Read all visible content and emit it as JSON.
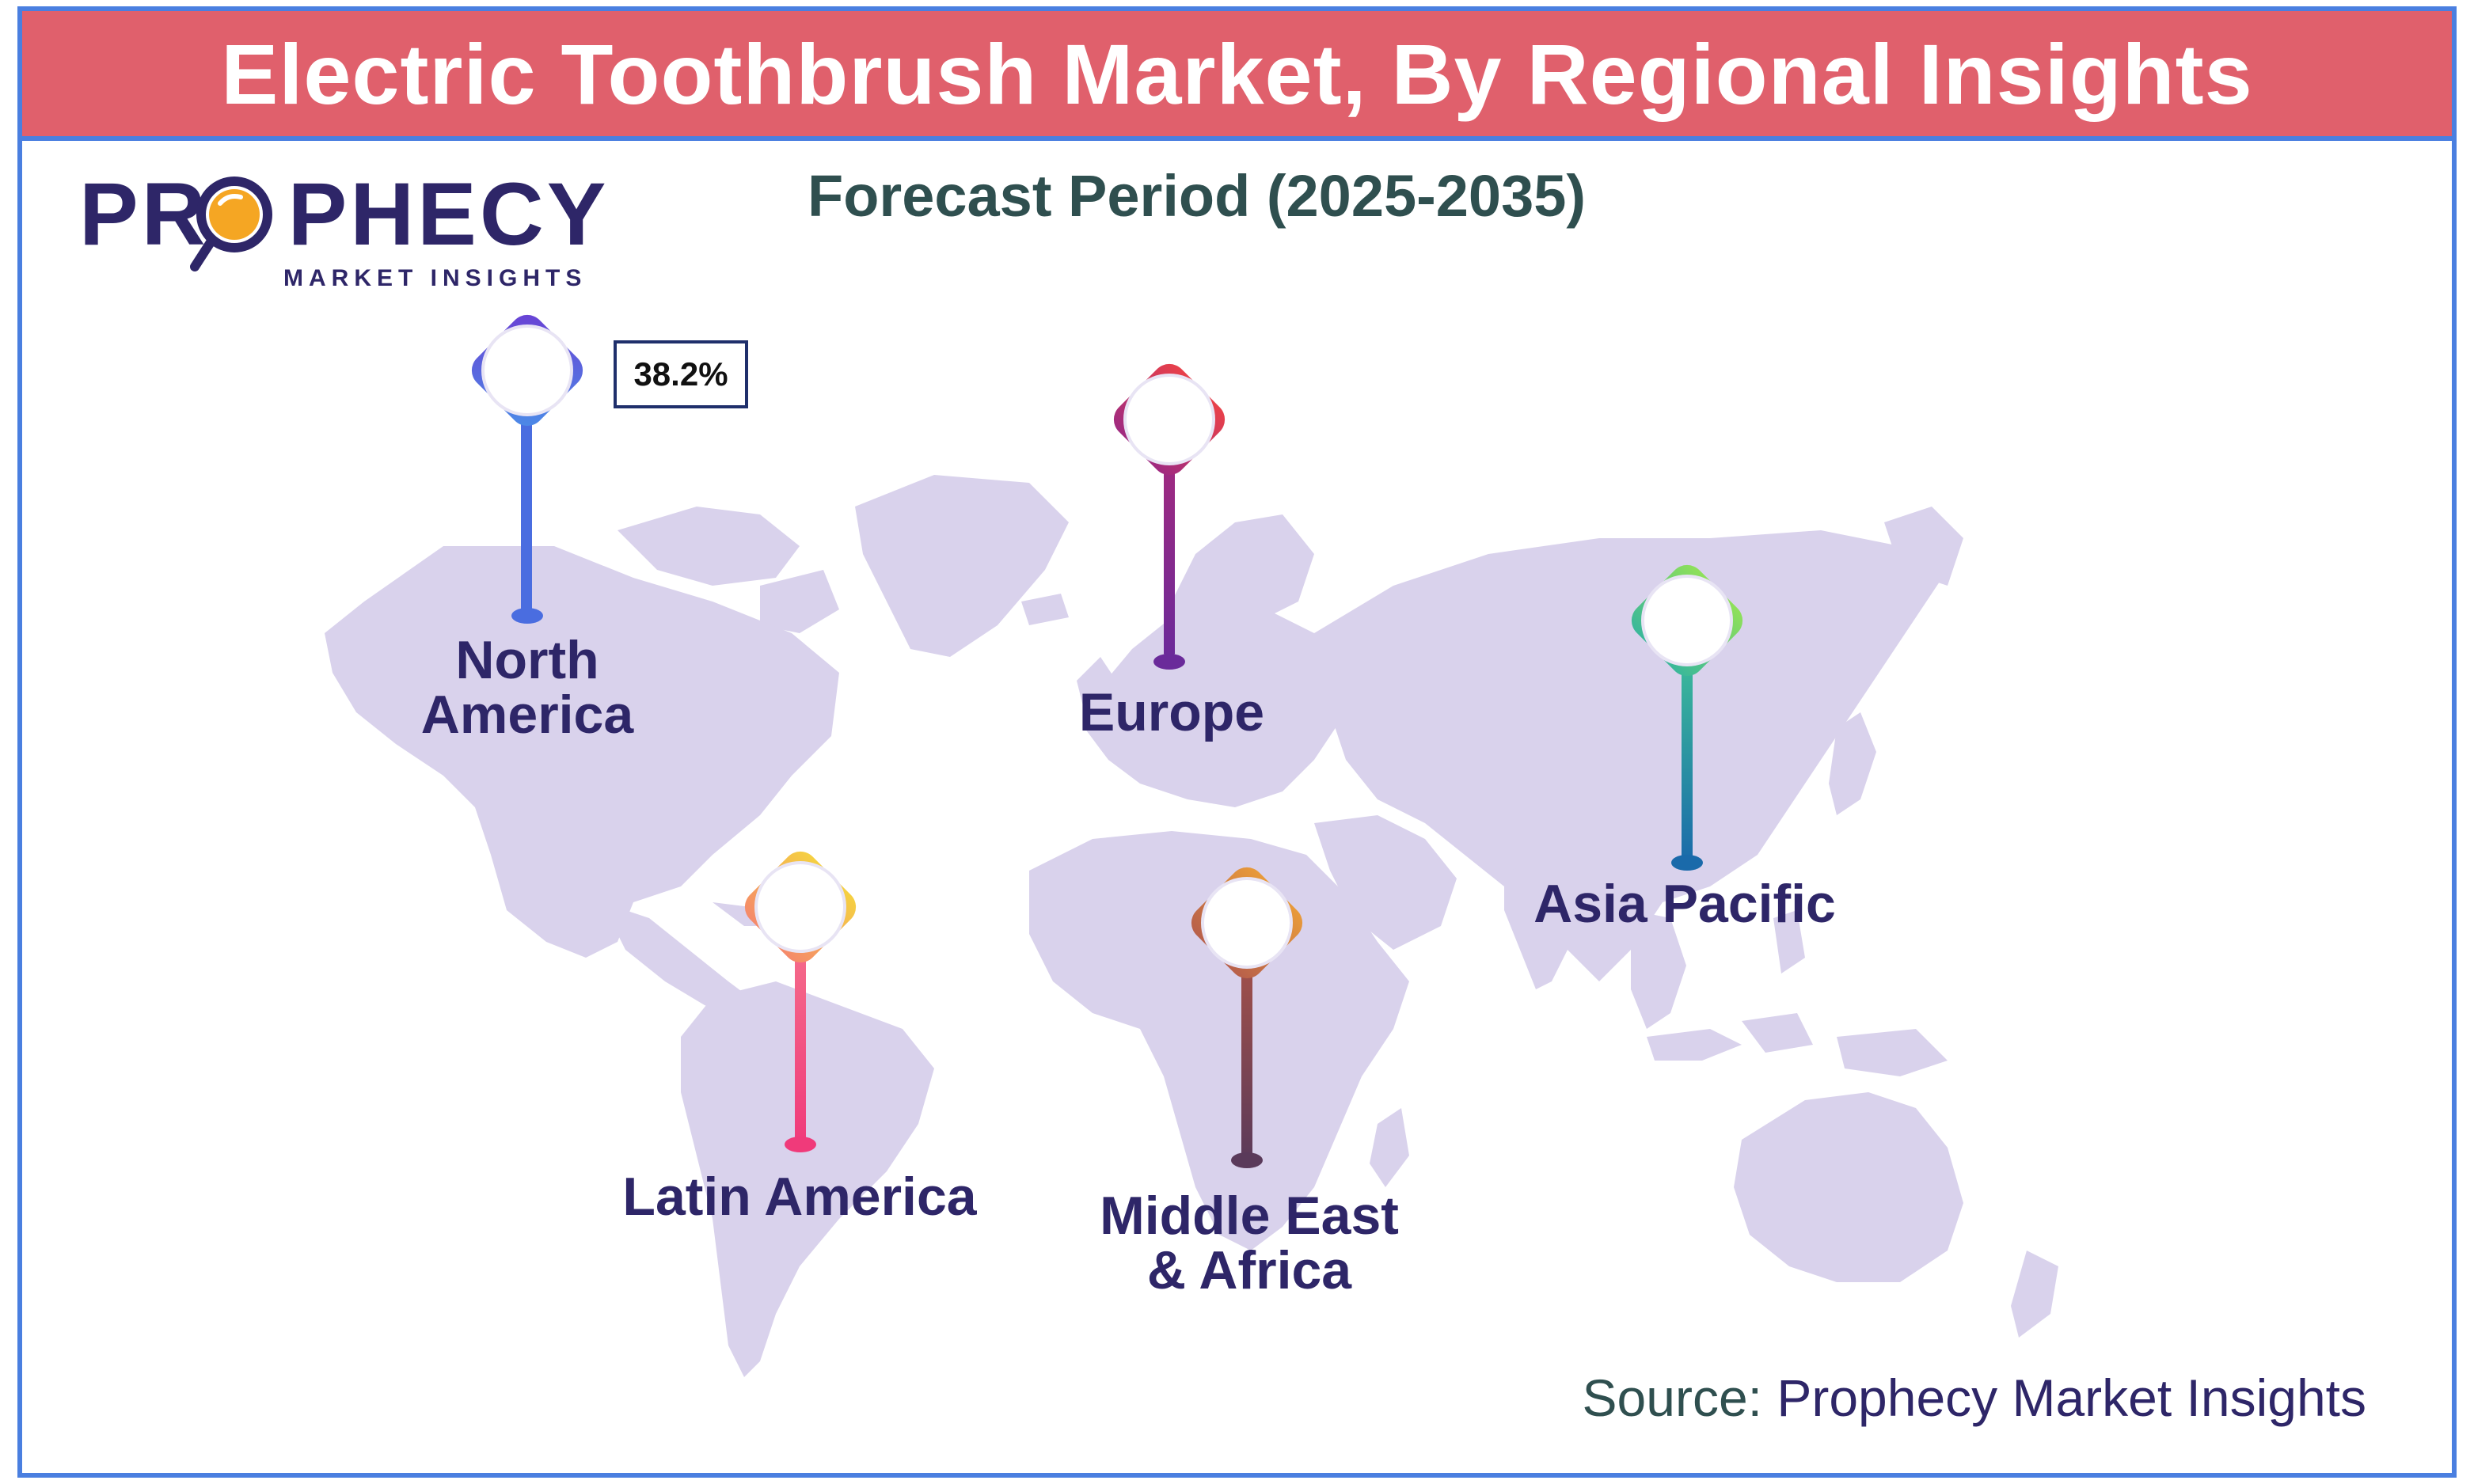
{
  "title": "Electric Toothbrush Market, By Regional Insights",
  "subtitle": "Forecast Period (2025-2035)",
  "logo": {
    "brand_left": "PR",
    "brand_right": "PHECY",
    "tagline": "MARKET INSIGHTS"
  },
  "source": {
    "prefix": "Source: ",
    "brand": "Prophecy Market Insights"
  },
  "colors": {
    "banner": "#e0606c",
    "frame": "#4a7fe0",
    "land": "#d9d2ec",
    "label": "#2e2668",
    "logo_orange": "#f5a623"
  },
  "regions": [
    {
      "name": "North America",
      "line1": "North",
      "line2": "America",
      "value": "38.2%",
      "pin_colors": [
        "#6a3fd4",
        "#4a8de8"
      ]
    },
    {
      "name": "Europe",
      "line1": "Europe",
      "line2": "",
      "pin_colors": [
        "#e8404a",
        "#8a2a9a"
      ]
    },
    {
      "name": "Asia Pacific",
      "line1": "Asia Pacific",
      "line2": "",
      "pin_colors": [
        "#8fe05a",
        "#1a78b8"
      ]
    },
    {
      "name": "Latin America",
      "line1": "Latin America",
      "line2": "",
      "pin_colors": [
        "#f5c842",
        "#f04a8a"
      ]
    },
    {
      "name": "Middle East & Africa",
      "line1": "Middle East",
      "line2": "& Africa",
      "pin_colors": [
        "#e88a3a",
        "#6a3a6a"
      ]
    }
  ]
}
